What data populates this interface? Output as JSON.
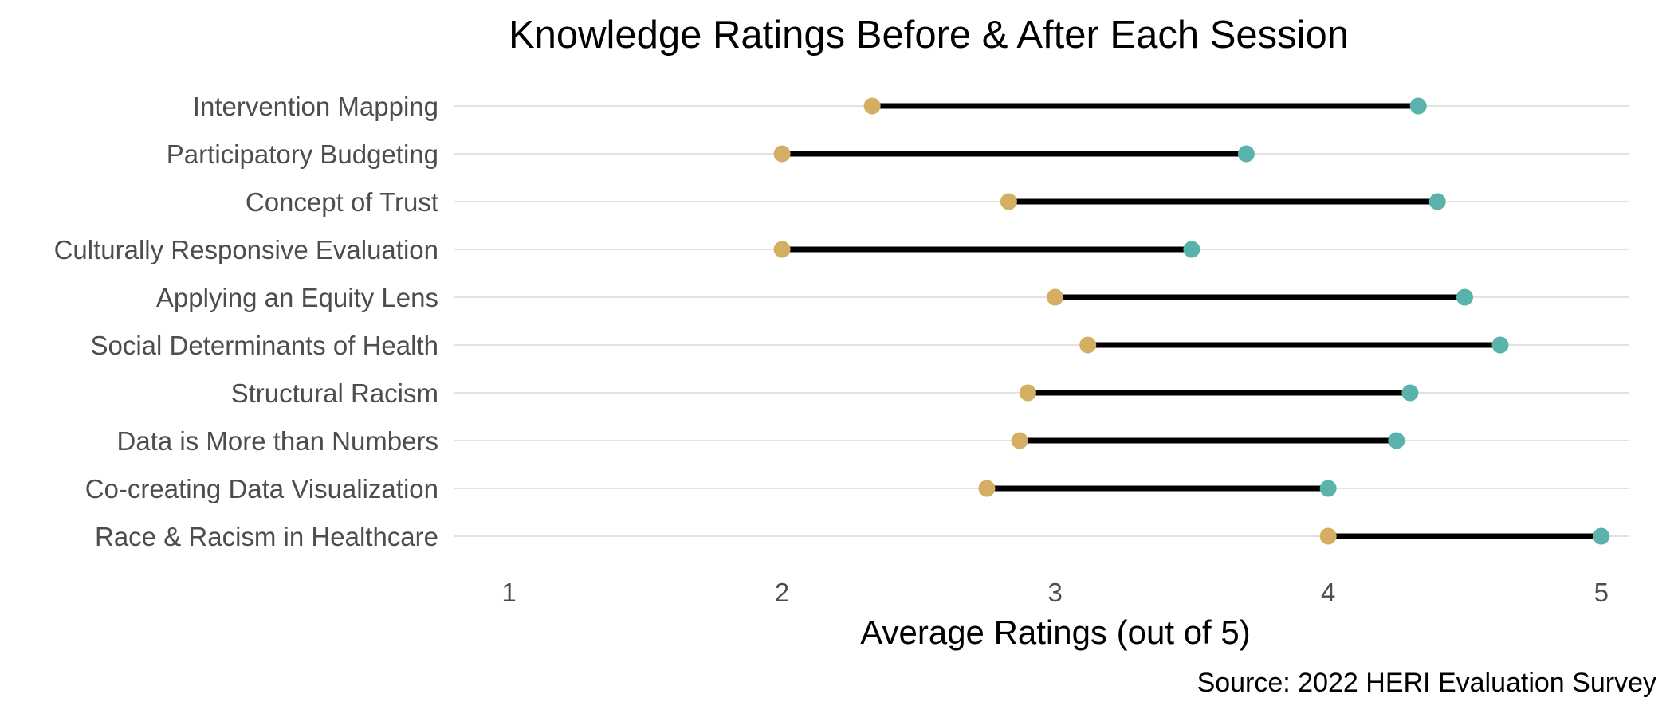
{
  "chart_data": {
    "type": "dumbbell",
    "title": "Knowledge Ratings Before & After Each Session",
    "xlabel": "Average Ratings (out of 5)",
    "ylabel": "",
    "caption": "Source: 2022 HERI Evaluation Survey",
    "xlim": [
      0.8,
      5.1
    ],
    "xticks": [
      1,
      2,
      3,
      4,
      5
    ],
    "grid": "horizontal-major",
    "legend": "none",
    "colors": {
      "before": "#D4AE62",
      "after": "#5AB3AA",
      "segment": "#000000",
      "grid": "#d9d9d9"
    },
    "categories": [
      "Intervention Mapping",
      "Participatory Budgeting",
      "Concept of Trust",
      "Culturally Responsive Evaluation",
      "Applying an Equity Lens",
      "Social Determinants of Health",
      "Structural Racism",
      "Data is More than Numbers",
      "Co-creating Data Visualization",
      "Race & Racism in Healthcare"
    ],
    "series": [
      {
        "values": [
          2.33,
          2.0,
          2.83,
          2.0,
          3.0,
          3.12,
          2.9,
          2.87,
          2.75,
          4.0
        ]
      },
      {
        "values": [
          4.33,
          3.7,
          4.4,
          3.5,
          4.5,
          4.63,
          4.3,
          4.25,
          4.0,
          5.0
        ]
      }
    ]
  }
}
